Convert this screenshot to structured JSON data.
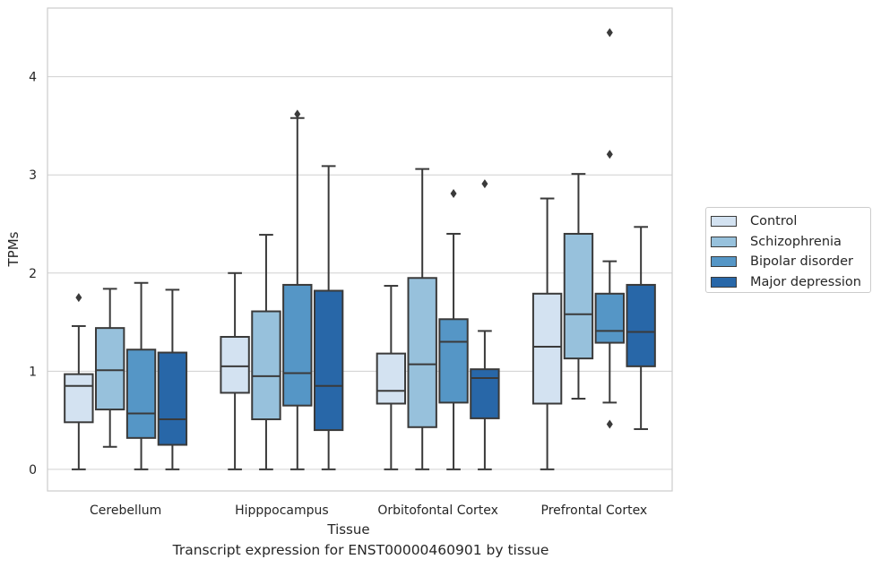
{
  "caption": "Transcript expression for ENST00000460901 by tissue",
  "colors": {
    "Control": "#d3e2f1",
    "Schizophrenia": "#97c1dc",
    "Bipolar disorder": "#5596c6",
    "Major depression": "#2867a8"
  },
  "chart_data": {
    "type": "box",
    "title": "",
    "xlabel": "Tissue",
    "ylabel": "TPMs",
    "ylim": [
      -0.22,
      4.7
    ],
    "yticks": [
      0,
      1,
      2,
      3,
      4
    ],
    "grid": true,
    "legend_position": "right",
    "categories": [
      "Cerebellum",
      "Hipppocampus",
      "Orbitofontal Cortex",
      "Prefrontal Cortex"
    ],
    "series": [
      {
        "name": "Control",
        "boxes": [
          {
            "whislo": 0,
            "q1": 0.48,
            "med": 0.85,
            "q3": 0.97,
            "whishi": 1.46,
            "fliers": [
              1.75
            ]
          },
          {
            "whislo": 0,
            "q1": 0.78,
            "med": 1.05,
            "q3": 1.35,
            "whishi": 2.0,
            "fliers": []
          },
          {
            "whislo": 0,
            "q1": 0.67,
            "med": 0.8,
            "q3": 1.18,
            "whishi": 1.87,
            "fliers": []
          },
          {
            "whislo": 0,
            "q1": 0.67,
            "med": 1.25,
            "q3": 1.79,
            "whishi": 2.76,
            "fliers": []
          }
        ]
      },
      {
        "name": "Schizophrenia",
        "boxes": [
          {
            "whislo": 0.23,
            "q1": 0.61,
            "med": 1.01,
            "q3": 1.44,
            "whishi": 1.84,
            "fliers": []
          },
          {
            "whislo": 0,
            "q1": 0.51,
            "med": 0.95,
            "q3": 1.61,
            "whishi": 2.39,
            "fliers": []
          },
          {
            "whislo": 0,
            "q1": 0.43,
            "med": 1.07,
            "q3": 1.95,
            "whishi": 3.06,
            "fliers": []
          },
          {
            "whislo": 0.72,
            "q1": 1.13,
            "med": 1.58,
            "q3": 2.4,
            "whishi": 3.01,
            "fliers": []
          }
        ]
      },
      {
        "name": "Bipolar disorder",
        "boxes": [
          {
            "whislo": 0,
            "q1": 0.32,
            "med": 0.57,
            "q3": 1.22,
            "whishi": 1.9,
            "fliers": []
          },
          {
            "whislo": 0,
            "q1": 0.65,
            "med": 0.98,
            "q3": 1.88,
            "whishi": 3.58,
            "fliers": [
              3.62
            ]
          },
          {
            "whislo": 0,
            "q1": 0.68,
            "med": 1.3,
            "q3": 1.53,
            "whishi": 2.4,
            "fliers": [
              2.81
            ]
          },
          {
            "whislo": 0.68,
            "q1": 1.29,
            "med": 1.41,
            "q3": 1.79,
            "whishi": 2.12,
            "fliers": [
              4.45,
              3.21,
              0.46
            ]
          }
        ]
      },
      {
        "name": "Major depression",
        "boxes": [
          {
            "whislo": 0,
            "q1": 0.25,
            "med": 0.51,
            "q3": 1.19,
            "whishi": 1.83,
            "fliers": []
          },
          {
            "whislo": 0,
            "q1": 0.4,
            "med": 0.85,
            "q3": 1.82,
            "whishi": 3.09,
            "fliers": []
          },
          {
            "whislo": 0,
            "q1": 0.52,
            "med": 0.93,
            "q3": 1.02,
            "whishi": 1.41,
            "fliers": [
              2.91
            ]
          },
          {
            "whislo": 0.41,
            "q1": 1.05,
            "med": 1.4,
            "q3": 1.88,
            "whishi": 2.47,
            "fliers": []
          }
        ]
      }
    ]
  }
}
